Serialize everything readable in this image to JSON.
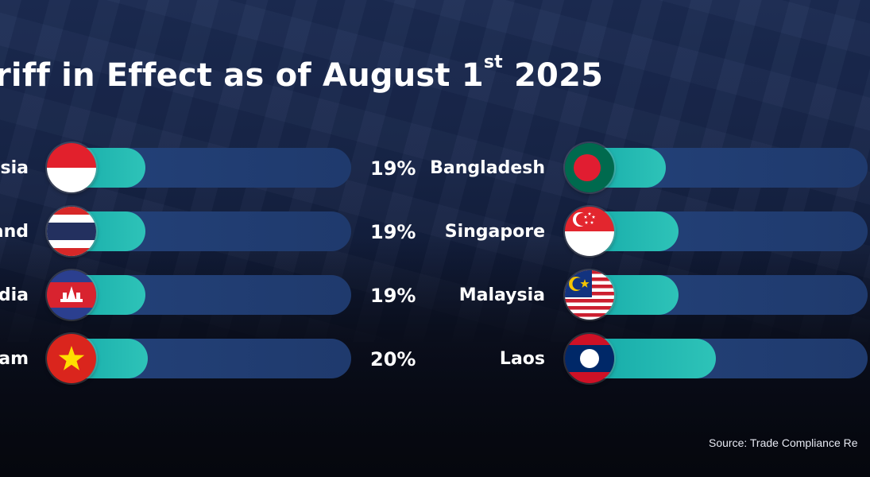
{
  "chart_data": {
    "type": "bar",
    "title_main": "riff in Effect as of August 1",
    "title_sup": "st",
    "title_tail": " 2025",
    "scale_max": 100,
    "left_column": [
      {
        "label": "esia",
        "value": 19,
        "value_label": "19%",
        "flag": "indonesia-flag"
      },
      {
        "label": "and",
        "value": 19,
        "value_label": "19%",
        "flag": "thailand-flag"
      },
      {
        "label": "dia",
        "value": 19,
        "value_label": "19%",
        "flag": "cambodia-flag"
      },
      {
        "label": "am",
        "value": 20,
        "value_label": "20%",
        "flag": "vietnam-flag"
      }
    ],
    "right_column": [
      {
        "label": "Bangladesh",
        "value": 20,
        "flag": "bangladesh-flag"
      },
      {
        "label": "Singapore",
        "value": 25,
        "flag": "singapore-flag"
      },
      {
        "label": "Malaysia",
        "value": 25,
        "flag": "malaysia-flag"
      },
      {
        "label": "Laos",
        "value": 40,
        "flag": "laos-flag"
      }
    ],
    "colors": {
      "fill": "#1fb5b0",
      "track": "#22407a",
      "background": "#16234a"
    }
  },
  "source": "Source: Trade Compliance Re"
}
